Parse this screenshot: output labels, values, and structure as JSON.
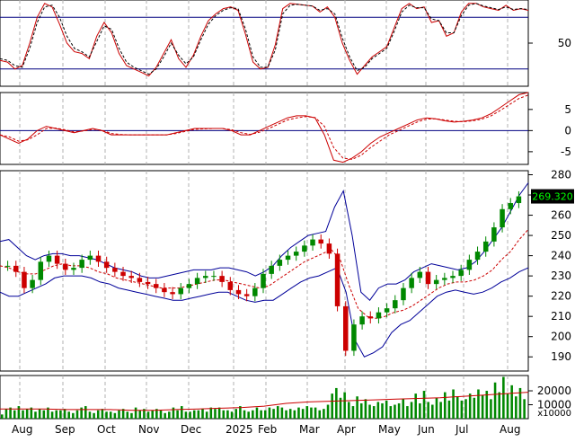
{
  "chart_data": {
    "type": "line",
    "x_ticks": [
      "Aug",
      "Sep",
      "Oct",
      "Nov",
      "Dec",
      "2025",
      "Feb",
      "Mar",
      "Apr",
      "May",
      "Jun",
      "Jul",
      "Aug"
    ],
    "panels": [
      {
        "name": "stochastic",
        "y_ticks": [
          50
        ],
        "ylim": [
          0,
          100
        ],
        "reference_lines": [
          80,
          20
        ],
        "reference_color": "#000080",
        "series": [
          {
            "values": [
              30,
              28,
              20,
              24,
              50,
              80,
              96,
              92,
              72,
              50,
              40,
              38,
              32,
              58,
              74,
              62,
              38,
              24,
              20,
              16,
              12,
              22,
              38,
              54,
              32,
              22,
              36,
              58,
              76,
              84,
              90,
              92,
              88,
              60,
              28,
              20,
              22,
              48,
              90,
              96,
              95,
              94,
              93,
              86,
              92,
              80,
              50,
              30,
              14,
              24,
              34,
              40,
              46,
              68,
              90,
              96,
              90,
              92,
              74,
              76,
              58,
              62,
              86,
              96,
              96,
              92,
              90,
              88,
              94,
              88,
              90,
              88
            ],
            "color": "#cc0000"
          },
          {
            "values": [
              32,
              30,
              24,
              22,
              44,
              74,
              92,
              94,
              80,
              58,
              44,
              40,
              34,
              52,
              70,
              66,
              44,
              28,
              22,
              18,
              14,
              20,
              34,
              50,
              36,
              26,
              34,
              54,
              72,
              82,
              88,
              91,
              90,
              66,
              34,
              22,
              22,
              42,
              84,
              94,
              95,
              94,
              93,
              88,
              90,
              84,
              56,
              34,
              18,
              22,
              32,
              38,
              44,
              64,
              86,
              94,
              91,
              91,
              78,
              76,
              62,
              62,
              82,
              94,
              96,
              93,
              91,
              89,
              92,
              89,
              90,
              89
            ],
            "color": "#000000",
            "dashed": true
          }
        ]
      },
      {
        "name": "macd",
        "y_ticks": [
          5,
          0,
          -5
        ],
        "ylim": [
          -8,
          9
        ],
        "reference_lines": [
          0
        ],
        "reference_color": "#000080",
        "series": [
          {
            "values": [
              -1,
              -2,
              -3,
              -2,
              0,
              1,
              0.5,
              0,
              -0.5,
              0,
              0.5,
              0,
              -1,
              -1,
              -1,
              -1,
              -1,
              -1,
              -1,
              -0.5,
              0,
              0.5,
              0.5,
              0.5,
              0.5,
              0,
              -1,
              -1,
              0,
              1,
              2,
              3,
              3.5,
              3.5,
              3,
              -1,
              -7,
              -7.5,
              -6.5,
              -5,
              -3,
              -1.5,
              -0.5,
              0.5,
              1.5,
              2.5,
              3,
              2.8,
              2.3,
              2,
              2.2,
              2.5,
              3,
              4,
              5.5,
              7,
              8.5,
              9
            ],
            "color": "#cc0000"
          },
          {
            "values": [
              -1,
              -1.5,
              -2.5,
              -2.2,
              -1,
              0.5,
              0.6,
              0.2,
              -0.3,
              -0.1,
              0.3,
              0.1,
              -0.7,
              -0.9,
              -1,
              -1,
              -1,
              -1,
              -1,
              -0.7,
              -0.2,
              0.3,
              0.4,
              0.5,
              0.5,
              0.2,
              -0.5,
              -0.9,
              -0.4,
              0.5,
              1.5,
              2.5,
              3,
              3.3,
              3.1,
              1,
              -4,
              -6.5,
              -6.8,
              -5.8,
              -4,
              -2.5,
              -1,
              0,
              1,
              2,
              2.7,
              2.8,
              2.5,
              2.2,
              2.1,
              2.3,
              2.7,
              3.5,
              4.8,
              6.2,
              7.6,
              8.4
            ],
            "color": "#cc0000",
            "dashed": true
          }
        ]
      },
      {
        "name": "price",
        "y_ticks": [
          280,
          270,
          260,
          250,
          240,
          230,
          220,
          210,
          200,
          190
        ],
        "ylim": [
          183,
          282
        ],
        "last_price_label": "269.320",
        "close_values": [
          235,
          232,
          224,
          228,
          237,
          240,
          236,
          233,
          234,
          238,
          240,
          237,
          234,
          232,
          230,
          229,
          227,
          226,
          224,
          222,
          221,
          224,
          226,
          229,
          230,
          230,
          227,
          223,
          221,
          220,
          224,
          231,
          235,
          238,
          240,
          242,
          245,
          248,
          246,
          241,
          215,
          193,
          206,
          210,
          209,
          212,
          214,
          218,
          224,
          229,
          232,
          226,
          228,
          229,
          230,
          233,
          238,
          242,
          247,
          254,
          263,
          266,
          269.32
        ],
        "series": [
          {
            "name": "upper_band",
            "values": [
              247,
              248,
              244,
              240,
              238,
              240,
              241,
              241,
              240,
              240,
              239,
              238,
              236,
              234,
              233,
              232,
              230,
              229,
              229,
              230,
              231,
              232,
              233,
              233,
              233,
              234,
              234,
              233,
              232,
              230,
              232,
              235,
              240,
              244,
              247,
              250,
              251,
              252,
              264,
              272,
              250,
              222,
              218,
              224,
              226,
              226,
              228,
              232,
              234,
              236,
              235,
              234,
              233,
              234,
              237,
              242,
              248,
              254,
              262,
              270,
              276
            ],
            "color": "#000099"
          },
          {
            "name": "middle_band",
            "values": [
              235,
              234,
              232,
              231,
              231,
              233,
              235,
              236,
              235,
              235,
              234,
              232,
              231,
              229,
              228,
              227,
              226,
              225,
              224,
              224,
              224,
              225,
              226,
              227,
              228,
              228,
              227,
              226,
              225,
              224,
              225,
              228,
              231,
              234,
              237,
              239,
              241,
              243,
              238,
              225,
              214,
              210,
              209,
              210,
              212,
              213,
              215,
              218,
              221,
              224,
              226,
              227,
              227,
              228,
              230,
              233,
              238,
              242,
              248,
              253
            ],
            "color": "#cc0000",
            "dashed": true
          },
          {
            "name": "lower_band",
            "values": [
              222,
              220,
              220,
              222,
              224,
              226,
              229,
              230,
              230,
              230,
              229,
              227,
              226,
              224,
              223,
              222,
              221,
              220,
              219,
              218,
              218,
              219,
              220,
              221,
              222,
              222,
              220,
              218,
              217,
              218,
              218,
              221,
              224,
              227,
              229,
              230,
              232,
              234,
              222,
              198,
              190,
              192,
              195,
              202,
              206,
              208,
              212,
              216,
              220,
              222,
              223,
              222,
              221,
              222,
              224,
              227,
              229,
              232,
              234
            ],
            "color": "#000099"
          }
        ]
      },
      {
        "name": "volume",
        "y_ticks": [
          20000,
          10000
        ],
        "unit_label": "x10000",
        "ylim": [
          0,
          31000
        ],
        "volume_values": [
          3000,
          7000,
          8000,
          6000,
          9000,
          6000,
          7000,
          8000,
          5000,
          7000,
          6000,
          8000,
          5000,
          6000,
          6000,
          7000,
          5000,
          4000,
          6000,
          8000,
          9000,
          5000,
          4000,
          6000,
          7000,
          5000,
          5000,
          4000,
          6000,
          7000,
          5000,
          4000,
          8000,
          6000,
          7000,
          5000,
          6000,
          7000,
          6000,
          4000,
          5000,
          8000,
          6000,
          9000,
          5000,
          5000,
          6000,
          6000,
          7000,
          5000,
          8000,
          7000,
          8000,
          6000,
          6000,
          5000,
          7000,
          9000,
          6000,
          5000,
          6000,
          8000,
          6000,
          6000,
          8000,
          7000,
          9000,
          8000,
          6000,
          7000,
          6000,
          8000,
          7000,
          9000,
          8000,
          8000,
          6000,
          7000,
          10000,
          18000,
          22000,
          15000,
          19000,
          12000,
          9000,
          16000,
          11000,
          14000,
          10000,
          9000,
          12000,
          11000,
          13000,
          9000,
          10000,
          11000,
          14000,
          9000,
          12000,
          18000,
          11000,
          20000,
          12000,
          10000,
          15000,
          12000,
          19000,
          13000,
          21000,
          16000,
          13000,
          14000,
          18000,
          15000,
          21000,
          17000,
          20000,
          14000,
          26000,
          19000,
          30000,
          18000,
          24000,
          16000,
          22000,
          14000
        ],
        "series": [
          {
            "name": "volume_average",
            "values": [
              7000,
              7000,
              7000,
              6500,
              6500,
              6500,
              6000,
              6000,
              6500,
              7000,
              7500,
              8000,
              9000,
              11000,
              12000,
              12500,
              13000,
              13500,
              14000,
              14500,
              15000,
              16000,
              17000,
              18000,
              19000
            ],
            "color": "#cc0000"
          }
        ]
      }
    ]
  }
}
